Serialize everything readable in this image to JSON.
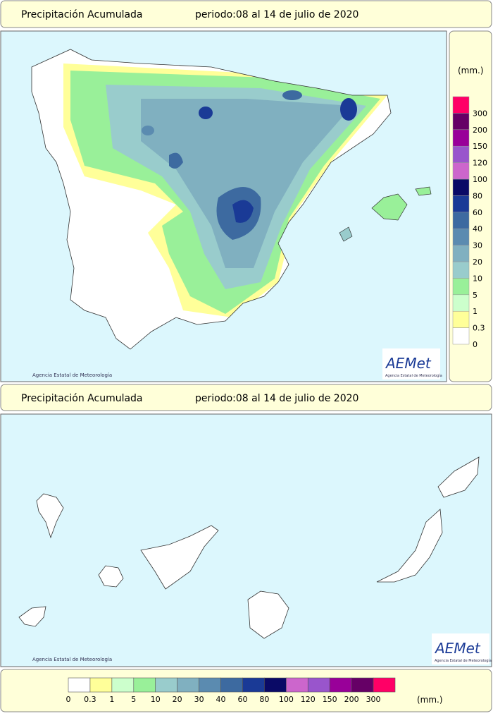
{
  "panels": [
    {
      "title": "Precipitación Acumulada",
      "period": "periodo:08 al 14 de julio de 2020",
      "credit": "Agencia Estatal de Meteorología",
      "logo": "AEMet",
      "logo_sub": "Agencia Estatal de Meteorología"
    },
    {
      "title": "Precipitación Acumulada",
      "period": "periodo:08 al 14 de julio de 2020",
      "credit": "Agencia Estatal de Meteorología",
      "logo": "AEMet",
      "logo_sub": "Agencia Estatal de Meteorología"
    }
  ],
  "legend": {
    "unit": "(mm.)",
    "items": [
      {
        "label": "0",
        "color": "#ffffff"
      },
      {
        "label": "0.3",
        "color": "#ffff99"
      },
      {
        "label": "1",
        "color": "#ccffcc"
      },
      {
        "label": "5",
        "color": "#99f099"
      },
      {
        "label": "10",
        "color": "#99cccc"
      },
      {
        "label": "20",
        "color": "#80b0c0"
      },
      {
        "label": "30",
        "color": "#5b8bb0"
      },
      {
        "label": "40",
        "color": "#3d6aa0"
      },
      {
        "label": "60",
        "color": "#1a3a96"
      },
      {
        "label": "80",
        "color": "#0a0a66"
      },
      {
        "label": "100",
        "color": "#cc66cc"
      },
      {
        "label": "120",
        "color": "#9955cc"
      },
      {
        "label": "150",
        "color": "#990099"
      },
      {
        "label": "200",
        "color": "#660066"
      },
      {
        "label": "300",
        "color": "#ff0066"
      }
    ]
  }
}
